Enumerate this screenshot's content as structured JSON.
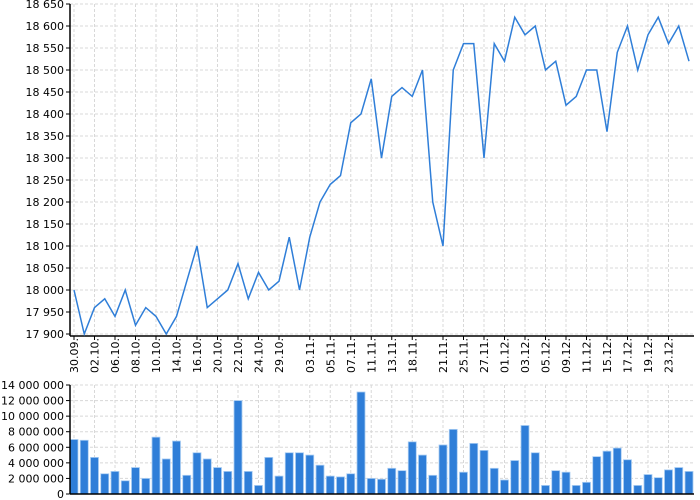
{
  "chart_data": [
    {
      "type": "line",
      "color": "#2f7ed8",
      "grid": true,
      "ylim": [
        17900,
        18650
      ],
      "yticks": [
        17900,
        17950,
        18000,
        18050,
        18100,
        18150,
        18200,
        18250,
        18300,
        18350,
        18400,
        18450,
        18500,
        18550,
        18600,
        18650
      ],
      "x_labels": [
        "30.09.",
        "",
        "02.10.",
        "",
        "06.10.",
        "",
        "08.10.",
        "",
        "10.10.",
        "",
        "14.10.",
        "",
        "16.10.",
        "",
        "20.10.",
        "",
        "22.10.",
        "",
        "24.10.",
        "",
        "29.10.",
        "",
        "",
        "03.11.",
        "",
        "05.11.",
        "",
        "07.11.",
        "",
        "11.11.",
        "",
        "13.11.",
        "",
        "18.11.",
        "",
        "",
        "21.11.",
        "",
        "25.11.",
        "",
        "27.11.",
        "",
        "01.12.",
        "",
        "03.12.",
        "",
        "05.12.",
        "",
        "09.12.",
        "",
        "11.12.",
        "",
        "15.12.",
        "",
        "17.12.",
        "",
        "19.12.",
        "",
        "23.12.",
        "",
        ""
      ],
      "values": [
        18000,
        17900,
        17960,
        17980,
        17940,
        18000,
        17920,
        17960,
        17940,
        17900,
        17940,
        18020,
        18100,
        17960,
        17980,
        18000,
        18060,
        17980,
        18040,
        18000,
        18020,
        18120,
        18000,
        18120,
        18200,
        18240,
        18260,
        18380,
        18400,
        18480,
        18300,
        18440,
        18460,
        18440,
        18500,
        18200,
        18100,
        18500,
        18560,
        18560,
        18300,
        18560,
        18520,
        18620,
        18580,
        18600,
        18500,
        18520,
        18420,
        18440,
        18500,
        18500,
        18360,
        18540,
        18600,
        18500,
        18580,
        18620,
        18560,
        18600,
        18520
      ]
    },
    {
      "type": "bar",
      "color": "#2f7ed8",
      "grid": true,
      "ylim": [
        0,
        14000000
      ],
      "yticks": [
        0,
        2000000,
        4000000,
        6000000,
        8000000,
        10000000,
        12000000,
        14000000
      ],
      "values": [
        7000000,
        6900000,
        4700000,
        2600000,
        2900000,
        1700000,
        3400000,
        2000000,
        7300000,
        4500000,
        6800000,
        2400000,
        5300000,
        4500000,
        3400000,
        2900000,
        12000000,
        2900000,
        1100000,
        4700000,
        2300000,
        5300000,
        5300000,
        5000000,
        3700000,
        2300000,
        2200000,
        2600000,
        13100000,
        2000000,
        1900000,
        3300000,
        3000000,
        6700000,
        5000000,
        2400000,
        6300000,
        8300000,
        2800000,
        6500000,
        5600000,
        3300000,
        1800000,
        4300000,
        8800000,
        5300000,
        1100000,
        3000000,
        2800000,
        1100000,
        1500000,
        4800000,
        5500000,
        5900000,
        4400000,
        1100000,
        2500000,
        2100000,
        3100000,
        3400000,
        2900000
      ]
    }
  ]
}
